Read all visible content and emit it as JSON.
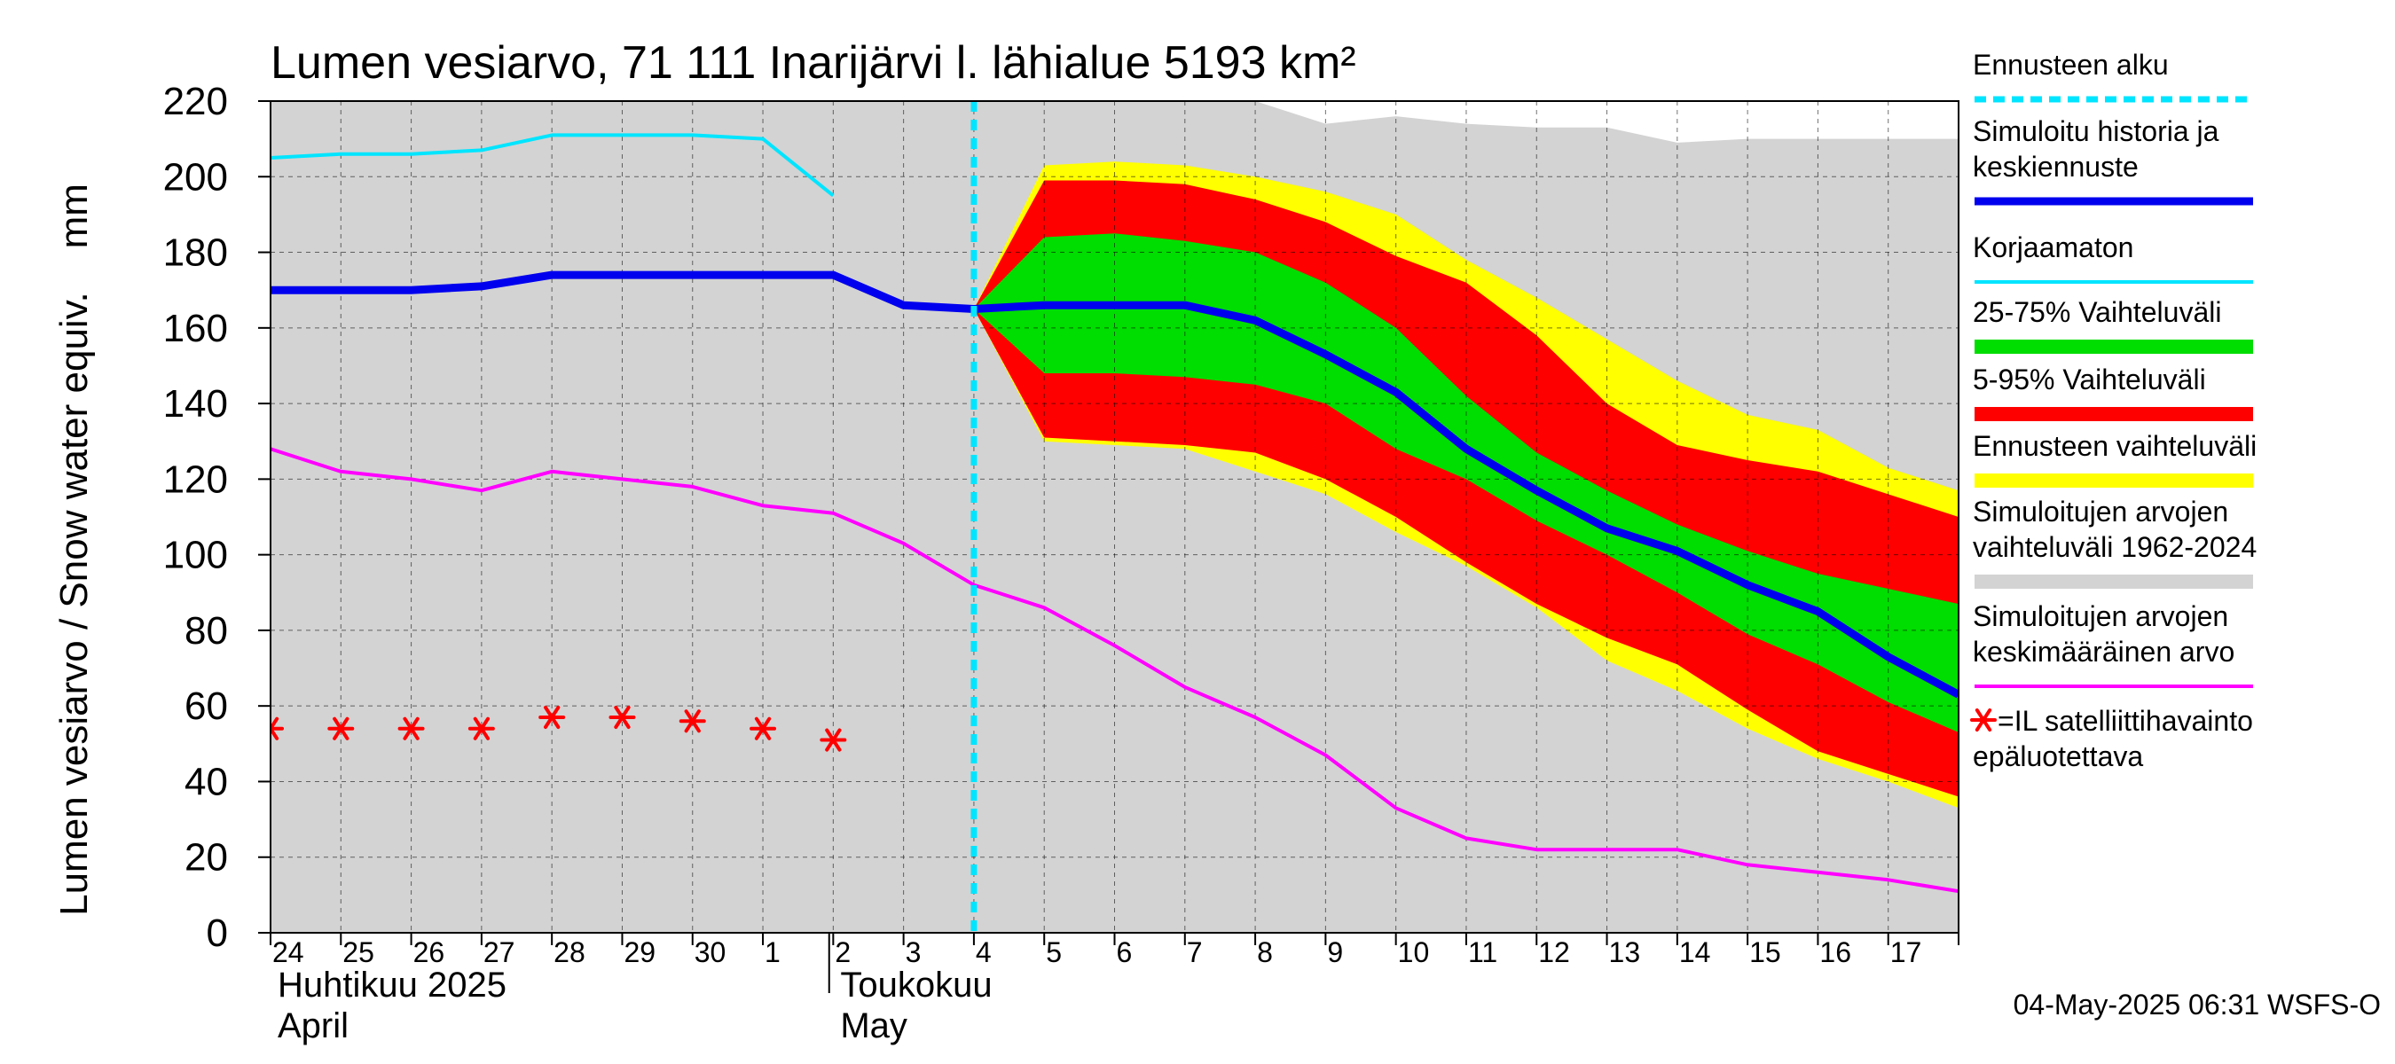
{
  "chart_data": {
    "type": "area",
    "title": "Lumen vesiarvo, 71 111 Inarijärvi l. lähialue 5193 km²",
    "ylabel": "Lumen vesiarvo / Snow water equiv.    mm",
    "ylim": [
      0,
      220
    ],
    "yticks": [
      0,
      20,
      40,
      60,
      80,
      100,
      120,
      140,
      160,
      180,
      200,
      220
    ],
    "x_tick_labels": [
      "24",
      "25",
      "26",
      "27",
      "28",
      "29",
      "30",
      "1",
      "2",
      "3",
      "4",
      "5",
      "6",
      "7",
      "8",
      "9",
      "10",
      "11",
      "12",
      "13",
      "14",
      "15",
      "16",
      "17"
    ],
    "month_labels": [
      {
        "line1": "Huhtikuu  2025",
        "line2": "April",
        "start_index": 0
      },
      {
        "line1": "Toukokuu",
        "line2": "May",
        "start_index": 8
      }
    ],
    "forecast_start_index": 10,
    "x_max_index": 24,
    "series": [
      {
        "name": "Simuloitujen arvojen vaihteluväli 1962-2024",
        "color": "#d3d3d3",
        "kind": "band",
        "x": [
          0,
          1,
          2,
          3,
          4,
          5,
          6,
          7,
          8,
          9,
          10,
          11,
          12,
          13,
          14,
          15,
          16,
          17,
          18,
          19,
          20,
          21,
          22,
          23,
          24
        ],
        "upper": [
          225,
          225,
          225,
          225,
          225,
          225,
          225,
          225,
          225,
          225,
          225,
          225,
          225,
          225,
          220,
          214,
          216,
          214,
          213,
          213,
          209,
          210,
          210,
          210,
          210
        ],
        "lower": [
          0,
          0,
          0,
          0,
          0,
          0,
          0,
          0,
          0,
          0,
          0,
          0,
          0,
          0,
          0,
          0,
          0,
          0,
          0,
          0,
          0,
          0,
          0,
          0,
          0
        ]
      },
      {
        "name": "Ennusteen vaihteluväli",
        "color": "#ffff00",
        "kind": "band",
        "x": [
          10,
          11,
          12,
          13,
          14,
          15,
          16,
          17,
          18,
          19,
          20,
          21,
          22,
          23,
          24
        ],
        "upper": [
          165,
          203,
          204,
          203,
          200,
          196,
          190,
          178,
          168,
          157,
          146,
          137,
          133,
          123,
          117
        ],
        "lower": [
          165,
          130,
          129,
          128,
          122,
          116,
          106,
          97,
          86,
          72,
          64,
          54,
          46,
          40,
          33
        ]
      },
      {
        "name": "5-95% Vaihteluväli",
        "color": "#ff0000",
        "kind": "band",
        "x": [
          10,
          11,
          12,
          13,
          14,
          15,
          16,
          17,
          18,
          19,
          20,
          21,
          22,
          23,
          24
        ],
        "upper": [
          165,
          199,
          199,
          198,
          194,
          188,
          179,
          172,
          158,
          140,
          129,
          125,
          122,
          116,
          110
        ],
        "lower": [
          165,
          131,
          130,
          129,
          127,
          120,
          110,
          98,
          87,
          78,
          71,
          59,
          48,
          42,
          36
        ]
      },
      {
        "name": "25-75% Vaihteluväli",
        "color": "#00dd00",
        "kind": "band",
        "x": [
          10,
          11,
          12,
          13,
          14,
          15,
          16,
          17,
          18,
          19,
          20,
          21,
          22,
          23,
          24
        ],
        "upper": [
          165,
          184,
          185,
          183,
          180,
          172,
          160,
          142,
          127,
          117,
          108,
          101,
          95,
          91,
          87
        ],
        "lower": [
          165,
          148,
          148,
          147,
          145,
          140,
          128,
          120,
          109,
          100,
          90,
          79,
          71,
          61,
          53
        ]
      },
      {
        "name": "Korjaamaton",
        "color": "#00e5ff",
        "kind": "line",
        "x": [
          0,
          1,
          2,
          3,
          4,
          5,
          6,
          7,
          8
        ],
        "values": [
          205,
          206,
          206,
          207,
          211,
          211,
          211,
          210,
          195
        ]
      },
      {
        "name": "Simuloitujen arvojen keskimääräinen arvo",
        "color": "#ff00ff",
        "kind": "line",
        "x": [
          0,
          1,
          2,
          3,
          4,
          5,
          6,
          7,
          8,
          9,
          10,
          11,
          12,
          13,
          14,
          15,
          16,
          17,
          18,
          19,
          20,
          21,
          22,
          23,
          24
        ],
        "values": [
          128,
          122,
          120,
          117,
          122,
          120,
          118,
          113,
          111,
          103,
          92,
          86,
          76,
          65,
          57,
          47,
          33,
          25,
          22,
          22,
          22,
          18,
          16,
          14,
          11
        ]
      },
      {
        "name": "Simuloitu historia ja keskiennuste",
        "color": "#0000ee",
        "kind": "line",
        "x": [
          0,
          1,
          2,
          3,
          4,
          5,
          6,
          7,
          8,
          9,
          10,
          11,
          12,
          13,
          14,
          15,
          16,
          17,
          18,
          19,
          20,
          21,
          22,
          23,
          24
        ],
        "values": [
          170,
          170,
          170,
          171,
          174,
          174,
          174,
          174,
          174,
          166,
          165,
          166,
          166,
          166,
          162,
          153,
          143,
          128,
          117,
          107,
          101,
          92,
          85,
          73,
          63
        ]
      },
      {
        "name": "=IL satelliittihavainto epäluotettava",
        "color": "#ff0000",
        "kind": "markers",
        "x": [
          0,
          1,
          2,
          3,
          4,
          5,
          6,
          7,
          8
        ],
        "values": [
          54,
          54,
          54,
          54,
          57,
          57,
          56,
          54,
          51
        ]
      }
    ],
    "legend": [
      {
        "label": "Ennusteen alku",
        "swatch": "dashed",
        "color": "#00e5ff"
      },
      {
        "label": "Simuloitu historia ja keskiennuste",
        "swatch": "line",
        "color": "#0000ee"
      },
      {
        "label": "Korjaamaton",
        "swatch": "line",
        "color": "#00e5ff"
      },
      {
        "label": "25-75% Vaihteluväli",
        "swatch": "band",
        "color": "#00dd00"
      },
      {
        "label": "5-95% Vaihteluväli",
        "swatch": "band",
        "color": "#ff0000"
      },
      {
        "label": "Ennusteen vaihteluväli",
        "swatch": "band",
        "color": "#ffff00"
      },
      {
        "label": "Simuloitujen arvojen vaihteluväli 1962-2024",
        "swatch": "band",
        "color": "#d3d3d3"
      },
      {
        "label": "Simuloitujen arvojen keskimääräinen arvo",
        "swatch": "line",
        "color": "#ff00ff"
      },
      {
        "label": "=IL satelliittihavainto epäluotettava",
        "swatch": "marker",
        "color": "#ff0000"
      }
    ],
    "legend_lines": [
      [
        "Ennusteen alku"
      ],
      [
        "Simuloitu historia ja",
        "keskiennuste"
      ],
      [
        "Korjaamaton"
      ],
      [
        "25-75% Vaihteluväli"
      ],
      [
        "5-95% Vaihteluväli"
      ],
      [
        "Ennusteen vaihteluväli"
      ],
      [
        "Simuloitujen arvojen",
        "vaihteluväli 1962-2024"
      ],
      [
        "Simuloitujen arvojen",
        "keskimääräinen arvo"
      ],
      [
        "=IL satelliittihavainto",
        "epäluotettava"
      ]
    ],
    "timestamp": "04-May-2025 06:31 WSFS-O",
    "grid": true,
    "legend_position": "right"
  }
}
